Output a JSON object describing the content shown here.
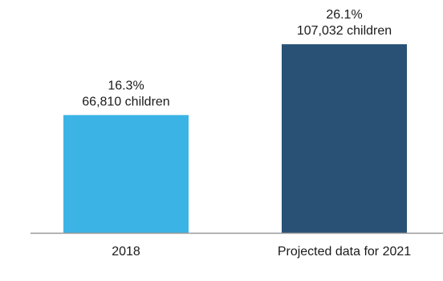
{
  "chart_data": {
    "type": "bar",
    "categories": [
      "2018",
      "Projected data for 2021"
    ],
    "values": [
      16.3,
      26.1
    ],
    "value_unit": "%",
    "bar_labels": [
      [
        "16.3%",
        "66,810 children"
      ],
      [
        "26.1%",
        "107,032 children"
      ]
    ],
    "colors": [
      "#3bb4e5",
      "#285175"
    ],
    "axis_color": "#999999",
    "ylim": [
      0,
      30
    ],
    "grid": false,
    "title": "",
    "xlabel": "",
    "ylabel": ""
  }
}
